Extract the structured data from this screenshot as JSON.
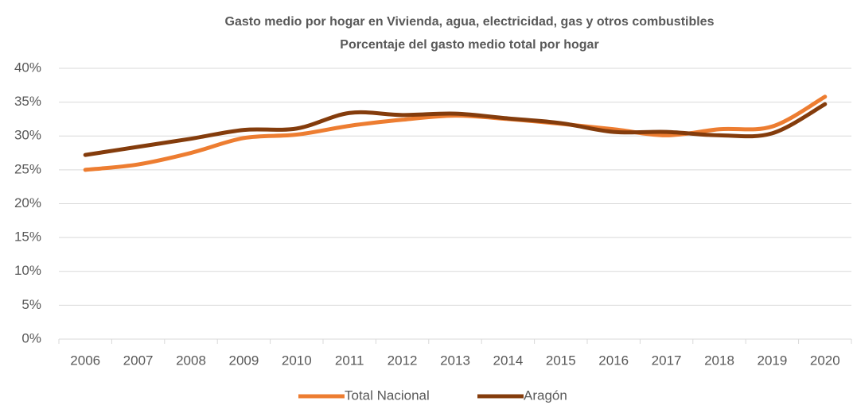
{
  "chart_data": {
    "type": "line",
    "title": "Gasto medio por hogar en Vivienda, agua, electricidad, gas y otros combustibles",
    "subtitle": "Porcentaje del gasto medio total por hogar",
    "categories": [
      "2006",
      "2007",
      "2008",
      "2009",
      "2010",
      "2011",
      "2012",
      "2013",
      "2014",
      "2015",
      "2016",
      "2017",
      "2018",
      "2019",
      "2020"
    ],
    "series": [
      {
        "name": "Total Nacional",
        "color": "#ed7d31",
        "values": [
          25.0,
          25.8,
          27.5,
          29.7,
          30.2,
          31.5,
          32.4,
          33.0,
          32.5,
          31.8,
          31.0,
          30.1,
          31.0,
          31.4,
          35.8
        ]
      },
      {
        "name": "Aragón",
        "color": "#843c0c",
        "values": [
          27.2,
          28.4,
          29.6,
          30.9,
          31.1,
          33.4,
          33.1,
          33.3,
          32.6,
          31.9,
          30.6,
          30.6,
          30.1,
          30.4,
          34.7
        ]
      }
    ],
    "ylim": [
      0,
      40
    ],
    "yticks": [
      {
        "value": 0,
        "label": "0%"
      },
      {
        "value": 5,
        "label": "5%"
      },
      {
        "value": 10,
        "label": "10%"
      },
      {
        "value": 15,
        "label": "15%"
      },
      {
        "value": 20,
        "label": "20%"
      },
      {
        "value": 25,
        "label": "25%"
      },
      {
        "value": 30,
        "label": "30%"
      },
      {
        "value": 35,
        "label": "35%"
      },
      {
        "value": 40,
        "label": "40%"
      }
    ],
    "grid": true,
    "smooth": true,
    "legend": "bottom"
  }
}
